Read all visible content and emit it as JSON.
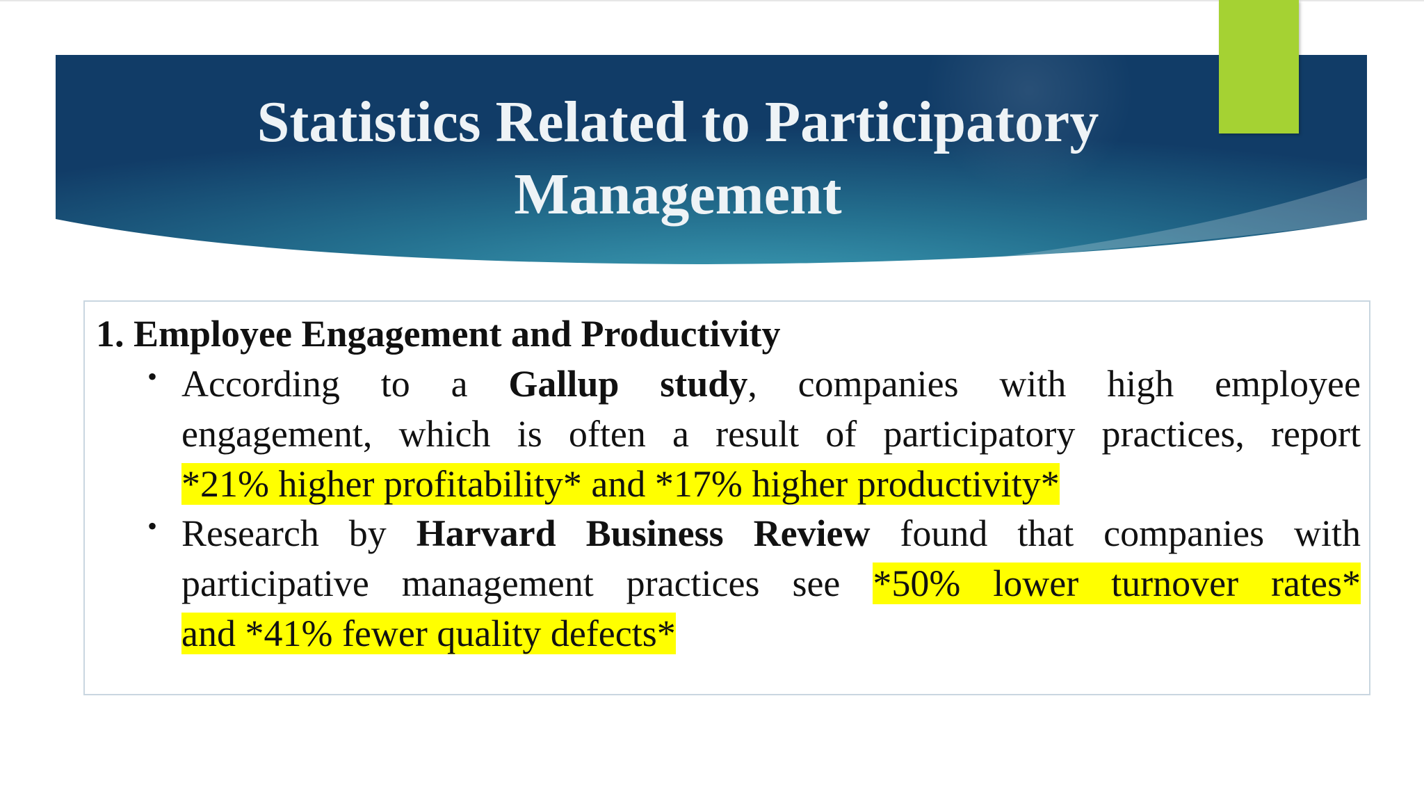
{
  "slide": {
    "title_line1": "Statistics Related to Participatory",
    "title_line2": "Management",
    "colors": {
      "banner_dark": "#0f3a66",
      "banner_mid": "#2f86a6",
      "accent": "#a5d233",
      "highlight": "#ffff00"
    }
  },
  "section": {
    "number": "1.",
    "heading": "Employee Engagement and Productivity",
    "bullets": [
      {
        "lines": [
          {
            "a": "According to a ",
            "b": "Gallup study",
            "c": ", companies with high employee"
          },
          {
            "text": "engagement, which is often a result of participatory practices, report"
          },
          {
            "highlight": "*21% higher profitability* and *17% higher productivity*"
          }
        ]
      },
      {
        "lines": [
          {
            "a": "Research by ",
            "b": "Harvard Business Review",
            "c": " found that companies with"
          },
          {
            "text": "participative management practices see ",
            "highlight": "*50% lower turnover rates*"
          },
          {
            "highlight": "and *41% fewer quality defects*"
          }
        ]
      }
    ]
  }
}
